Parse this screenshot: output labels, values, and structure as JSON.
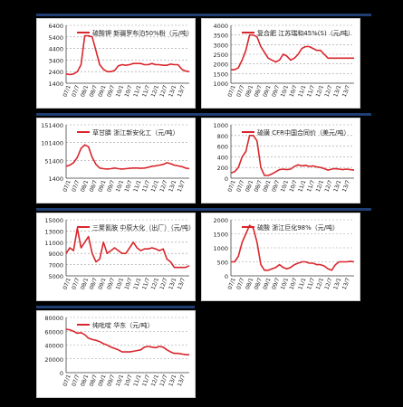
{
  "colors": {
    "line": "#d9262c",
    "grid": "#9a9a9a",
    "axis": "#444444",
    "header": "#1f3f74"
  },
  "chart_data": [
    {
      "type": "line",
      "title": "硫酸钾 新疆罗布泊50%粉（元/吨）",
      "ylim": [
        1400,
        6400
      ],
      "yticks": [
        "6400",
        "5400",
        "4400",
        "3400",
        "2400",
        "1400"
      ],
      "xticks": [
        "07/1",
        "07/7",
        "08/1",
        "08/7",
        "09/1",
        "09/7",
        "10/1",
        "10/7",
        "11/1",
        "11/7",
        "12/1",
        "12/7",
        "13/1",
        "13/7"
      ],
      "series": [
        {
          "values": [
            2200,
            2150,
            2200,
            2400,
            3000,
            5500,
            5500,
            5400,
            4200,
            3000,
            2600,
            2400,
            2400,
            2500,
            2900,
            3000,
            2950,
            3000,
            3100,
            3100,
            3100,
            3000,
            3000,
            3100,
            3000,
            3000,
            2950,
            2950,
            3050,
            3000,
            3000,
            2600,
            2450,
            2400
          ]
        }
      ]
    },
    {
      "type": "line",
      "title": "复合肥 江苏瑞和45%(S)（元/吨）",
      "ylim": [
        1000,
        4000
      ],
      "yticks": [
        "4000",
        "3500",
        "3000",
        "2500",
        "2000",
        "1500",
        "1000"
      ],
      "xticks": [
        "07/1",
        "07/7",
        "08/1",
        "08/7",
        "09/1",
        "09/7",
        "10/1",
        "10/7",
        "11/1",
        "11/7",
        "12/1",
        "12/7",
        "13/1",
        "13/7"
      ],
      "series": [
        {
          "values": [
            1700,
            1700,
            1800,
            2200,
            2700,
            3500,
            3500,
            3400,
            2900,
            2600,
            2300,
            2200,
            2100,
            2200,
            2500,
            2400,
            2200,
            2300,
            2500,
            2800,
            2900,
            2900,
            2800,
            2700,
            2700,
            2500,
            2300,
            2300,
            2300,
            2300,
            2300,
            2300,
            2300,
            2300
          ]
        }
      ]
    },
    {
      "type": "line",
      "title": "草甘膦 浙江新安化工（元/吨）",
      "ylim": [
        1400,
        151400
      ],
      "yticks": [
        "151400",
        "101400",
        "51400",
        "1400"
      ],
      "xticks": [
        "07/1",
        "07/7",
        "08/1",
        "08/7",
        "09/1",
        "09/7",
        "10/1",
        "10/7",
        "11/1",
        "11/7",
        "12/1",
        "12/7",
        "13/1",
        "13/7"
      ],
      "series": [
        {
          "values": [
            35000,
            38000,
            45000,
            60000,
            85000,
            95000,
            90000,
            60000,
            40000,
            30000,
            28000,
            27000,
            28000,
            30000,
            28000,
            27000,
            28000,
            29000,
            30000,
            30000,
            29000,
            30000,
            32000,
            35000,
            36000,
            38000,
            40000,
            45000,
            42000,
            38000,
            36000,
            34000,
            30000,
            28000
          ]
        }
      ]
    },
    {
      "type": "line",
      "title": "硫磺 CFR中国合同价（美元/吨）",
      "ylim": [
        0,
        1000
      ],
      "yticks": [
        "1000",
        "800",
        "600",
        "400",
        "200",
        "0"
      ],
      "xticks": [
        "07/1",
        "07/7",
        "08/1",
        "08/7",
        "09/1",
        "09/7",
        "10/1",
        "10/7",
        "11/1",
        "11/7",
        "12/1",
        "12/7",
        "13/1",
        "13/7"
      ],
      "series": [
        {
          "values": [
            100,
            120,
            200,
            400,
            500,
            800,
            800,
            700,
            200,
            50,
            50,
            80,
            120,
            160,
            170,
            160,
            170,
            220,
            250,
            230,
            240,
            220,
            230,
            210,
            200,
            180,
            150,
            170,
            180,
            170,
            160,
            170,
            160,
            150
          ]
        }
      ]
    },
    {
      "type": "line",
      "title": "三聚氰胺 中原大化（出厂）（元/吨）",
      "ylim": [
        5000,
        15000
      ],
      "yticks": [
        "15000",
        "13000",
        "11000",
        "9000",
        "7000",
        "5000"
      ],
      "xticks": [
        "07/1",
        "07/7",
        "08/1",
        "08/7",
        "09/1",
        "09/7",
        "10/1",
        "10/7",
        "11/1",
        "11/7",
        "12/1",
        "12/7",
        "13/1",
        "13/7"
      ],
      "series": [
        {
          "values": [
            9000,
            10000,
            9500,
            13500,
            10000,
            11000,
            12000,
            9000,
            7500,
            8000,
            11000,
            9000,
            9500,
            10000,
            9500,
            9000,
            9000,
            10000,
            11000,
            10000,
            9500,
            9800,
            9800,
            10000,
            9800,
            9500,
            9800,
            8000,
            7500,
            6500,
            6500,
            6500,
            6500,
            6800
          ]
        }
      ]
    },
    {
      "type": "line",
      "title": "硫酸 浙江巨化98%（元/吨）",
      "ylim": [
        0,
        2000
      ],
      "yticks": [
        "2000",
        "1500",
        "1000",
        "500",
        "0"
      ],
      "xticks": [
        "07/1",
        "07/7",
        "08/1",
        "08/7",
        "09/1",
        "09/7",
        "10/1",
        "10/7",
        "11/1",
        "11/7",
        "12/1",
        "12/7",
        "13/1",
        "13/7"
      ],
      "series": [
        {
          "values": [
            500,
            500,
            700,
            1200,
            1500,
            1800,
            1700,
            1200,
            400,
            200,
            200,
            250,
            300,
            400,
            300,
            250,
            300,
            400,
            450,
            500,
            500,
            450,
            450,
            400,
            400,
            350,
            250,
            200,
            400,
            500,
            500,
            500,
            520,
            500
          ]
        }
      ]
    },
    {
      "type": "line",
      "title": "纯吡啶 华东（元/吨）",
      "ylim": [
        0,
        80000
      ],
      "yticks": [
        "80000",
        "60000",
        "40000",
        "20000",
        "0"
      ],
      "xticks": [
        "07/1",
        "07/7",
        "08/1",
        "08/7",
        "09/1",
        "09/7",
        "10/1",
        "10/7",
        "11/1",
        "11/7",
        "12/1",
        "12/7",
        "13/1",
        "13/7"
      ],
      "series": [
        {
          "values": [
            63000,
            62000,
            60000,
            57000,
            58000,
            55000,
            50000,
            48000,
            47000,
            45000,
            42000,
            40000,
            37000,
            35000,
            33000,
            30000,
            30000,
            30000,
            31000,
            32000,
            33000,
            37000,
            38000,
            37000,
            36000,
            38000,
            37000,
            33000,
            30000,
            28000,
            28000,
            27000,
            26000,
            26000
          ]
        }
      ]
    }
  ]
}
